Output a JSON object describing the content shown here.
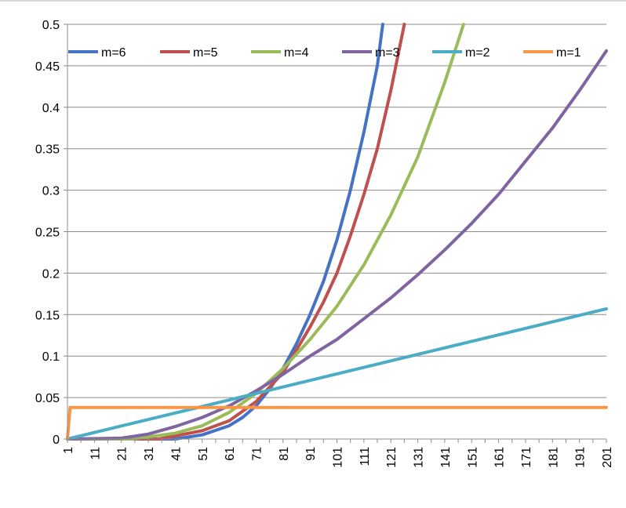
{
  "chart_data": {
    "type": "line",
    "title": "",
    "xlabel": "",
    "ylabel": "",
    "ylim": [
      0,
      0.5
    ],
    "xlim": [
      1,
      201
    ],
    "grid": "horizontal",
    "legend_position": "top",
    "y_ticks": [
      "0",
      "0.05",
      "0.1",
      "0.15",
      "0.2",
      "0.25",
      "0.3",
      "0.35",
      "0.4",
      "0.45",
      "0.5"
    ],
    "x_ticks": [
      "1",
      "11",
      "21",
      "31",
      "41",
      "51",
      "61",
      "71",
      "81",
      "91",
      "101",
      "111",
      "121",
      "131",
      "141",
      "151",
      "161",
      "171",
      "181",
      "191",
      "201"
    ],
    "series": [
      {
        "name": "m=6",
        "color": "#4472C4",
        "x": [
          1,
          41,
          51,
          61,
          66,
          71,
          76,
          81,
          86,
          91,
          96,
          101,
          106,
          111,
          116,
          118
        ],
        "y": [
          0,
          0,
          0.005,
          0.016,
          0.026,
          0.04,
          0.06,
          0.085,
          0.115,
          0.15,
          0.19,
          0.24,
          0.3,
          0.37,
          0.45,
          0.5
        ]
      },
      {
        "name": "m=5",
        "color": "#C0504D",
        "x": [
          1,
          35,
          51,
          61,
          71,
          81,
          91,
          96,
          101,
          106,
          111,
          116,
          121,
          126
        ],
        "y": [
          0,
          0,
          0.01,
          0.022,
          0.045,
          0.08,
          0.135,
          0.165,
          0.2,
          0.245,
          0.295,
          0.35,
          0.42,
          0.5
        ]
      },
      {
        "name": "m=4",
        "color": "#9BBB59",
        "x": [
          1,
          25,
          41,
          51,
          61,
          71,
          81,
          91,
          101,
          111,
          121,
          131,
          141,
          148
        ],
        "y": [
          0,
          0,
          0.007,
          0.016,
          0.032,
          0.055,
          0.085,
          0.12,
          0.16,
          0.21,
          0.27,
          0.34,
          0.43,
          0.5
        ]
      },
      {
        "name": "m=3",
        "color": "#8064A2",
        "x": [
          1,
          21,
          31,
          41,
          51,
          61,
          71,
          81,
          91,
          101,
          111,
          121,
          131,
          141,
          151,
          161,
          171,
          181,
          191,
          201
        ],
        "y": [
          0,
          0.001,
          0.006,
          0.015,
          0.026,
          0.04,
          0.058,
          0.078,
          0.1,
          0.12,
          0.145,
          0.17,
          0.198,
          0.228,
          0.26,
          0.295,
          0.335,
          0.375,
          0.42,
          0.468
        ]
      },
      {
        "name": "m=2",
        "color": "#4BACC6",
        "x": [
          1,
          201
        ],
        "y": [
          0,
          0.157
        ]
      },
      {
        "name": "m=1",
        "color": "#F79646",
        "x": [
          1,
          2,
          201
        ],
        "y": [
          0,
          0.038,
          0.038
        ]
      }
    ]
  }
}
